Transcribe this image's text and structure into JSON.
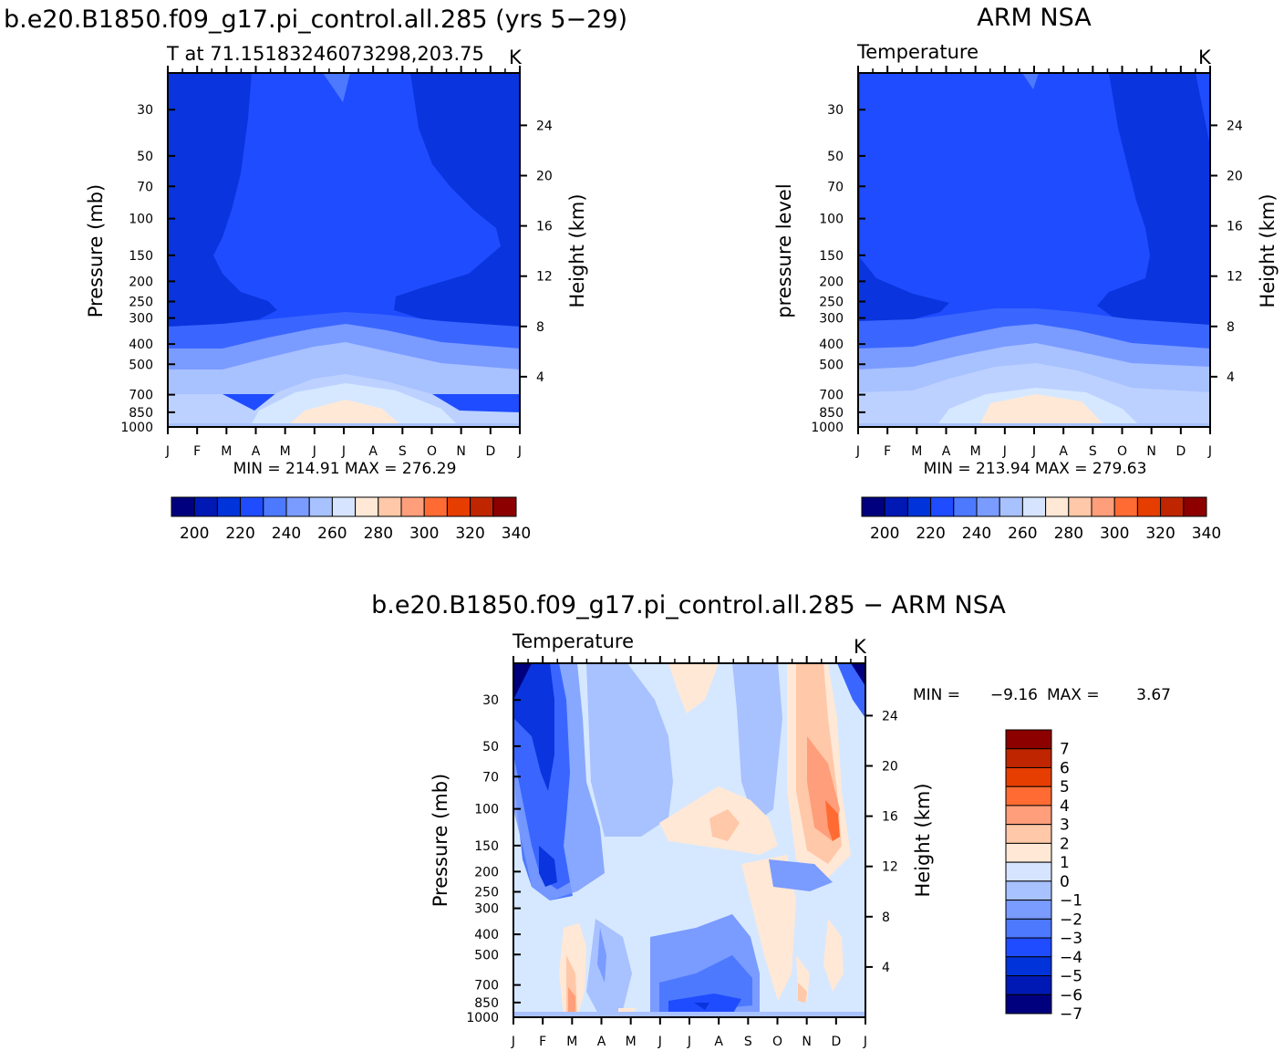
{
  "months": [
    "J",
    "F",
    "M",
    "A",
    "M",
    "J",
    "J",
    "A",
    "S",
    "O",
    "N",
    "D",
    "J"
  ],
  "colors": {
    "abs_scale": [
      "#00007f",
      "#0019b4",
      "#0033d9",
      "#1f4cff",
      "#4d79ff",
      "#7a9bff",
      "#a8c1ff",
      "#d6e4ff",
      "#ffe8d6",
      "#ffc8a8",
      "#ff9e7a",
      "#ff6b33",
      "#e63d00",
      "#bf2600",
      "#8c0000"
    ],
    "diff_scale": [
      "#00007f",
      "#0019b4",
      "#0033d9",
      "#1f4cff",
      "#4d79ff",
      "#7a9bff",
      "#a8c1ff",
      "#d6e4ff",
      "#ffe8d6",
      "#ffc8a8",
      "#ff9e7a",
      "#ff6b33",
      "#e63d00",
      "#bf2600",
      "#8c0000"
    ]
  },
  "top_left": {
    "header": "b.e20.B1850.f09_g17.pi_control.all.285 (yrs 5−29)",
    "subtitle": "T at 71.15183246073298,203.75",
    "units": "K",
    "ylabel": "Pressure (mb)",
    "ylabel_right": "Height (km)",
    "minmax": "MIN = 214.91 MAX = 276.29"
  },
  "top_right": {
    "header": "ARM NSA",
    "subtitle": "Temperature",
    "units": "K",
    "ylabel": "pressure level",
    "ylabel_right": "Height (km)",
    "minmax": "MIN = 213.94 MAX = 279.63"
  },
  "bottom": {
    "header": "b.e20.B1850.f09_g17.pi_control.all.285 − ARM NSA",
    "subtitle": "Temperature",
    "units": "K",
    "ylabel": "Pressure (mb)",
    "ylabel_right": "Height (km)",
    "min_label": "MIN =",
    "min_value": "−9.16",
    "max_label": "MAX =",
    "max_value": "3.67"
  },
  "chart_data": [
    {
      "type": "heatmap",
      "title": "b.e20.B1850.f09_g17.pi_control.all.285 (yrs 5−29)",
      "subtitle": "T at 71.15183246073298,203.75",
      "xlabel": "",
      "ylabel": "Pressure (mb)",
      "ylabel_right": "Height (km)",
      "x": [
        "J",
        "F",
        "M",
        "A",
        "M",
        "J",
        "J",
        "A",
        "S",
        "O",
        "N",
        "D",
        "J"
      ],
      "y_pressure_ticks": [
        30,
        50,
        70,
        100,
        150,
        200,
        250,
        300,
        400,
        500,
        700,
        850,
        1000
      ],
      "y_height_ticks": [
        4,
        8,
        12,
        16,
        20,
        24
      ],
      "colorbar_ticks": [
        200,
        220,
        240,
        260,
        280,
        300,
        320,
        340
      ],
      "band_temps_K": [
        [
          262,
          267,
          270,
          270,
          266,
          262,
          258,
          256,
          256,
          256,
          256
        ],
        [
          268,
          272,
          275,
          276,
          272,
          268,
          264,
          262,
          262,
          262,
          262
        ],
        [
          256,
          258,
          260,
          262,
          260,
          257,
          254,
          252,
          252,
          252,
          252
        ]
      ],
      "min": 214.91,
      "max": 276.29
    },
    {
      "type": "heatmap",
      "title": "ARM NSA",
      "subtitle": "Temperature",
      "xlabel": "",
      "ylabel": "pressure level",
      "ylabel_right": "Height (km)",
      "x": [
        "J",
        "F",
        "M",
        "A",
        "M",
        "J",
        "J",
        "A",
        "S",
        "O",
        "N",
        "D",
        "J"
      ],
      "y_pressure_ticks": [
        30,
        50,
        70,
        100,
        150,
        200,
        250,
        300,
        400,
        500,
        700,
        850,
        1000
      ],
      "y_height_ticks": [
        4,
        8,
        12,
        16,
        20,
        24
      ],
      "colorbar_ticks": [
        200,
        220,
        240,
        260,
        280,
        300,
        320,
        340
      ],
      "min": 213.94,
      "max": 279.63
    },
    {
      "type": "heatmap",
      "title": "b.e20.B1850.f09_g17.pi_control.all.285 − ARM NSA",
      "subtitle": "Temperature",
      "xlabel": "",
      "ylabel": "Pressure (mb)",
      "ylabel_right": "Height (km)",
      "x": [
        "J",
        "F",
        "M",
        "A",
        "M",
        "J",
        "J",
        "A",
        "S",
        "O",
        "N",
        "D",
        "J"
      ],
      "y_pressure_ticks": [
        30,
        50,
        70,
        100,
        150,
        200,
        250,
        300,
        400,
        500,
        700,
        850,
        1000
      ],
      "y_height_ticks": [
        4,
        8,
        12,
        16,
        20,
        24
      ],
      "colorbar_ticks": [
        7,
        6,
        5,
        4,
        3,
        2,
        1,
        0,
        -1,
        -2,
        -3,
        -4,
        -5,
        -6,
        -7
      ],
      "min": -9.16,
      "max": 3.67
    }
  ],
  "abs_colorbar_labels": [
    "200",
    "220",
    "240",
    "260",
    "280",
    "300",
    "320",
    "340"
  ],
  "diff_colorbar_labels": [
    "7",
    "6",
    "5",
    "4",
    "3",
    "2",
    "1",
    "0",
    "−1",
    "−2",
    "−3",
    "−4",
    "−5",
    "−6",
    "−7"
  ],
  "pressure_labels": [
    "30",
    "50",
    "70",
    "100",
    "150",
    "200",
    "250",
    "300",
    "400",
    "500",
    "700",
    "850",
    "1000"
  ],
  "height_labels": [
    "24",
    "20",
    "16",
    "12",
    "8",
    "4"
  ]
}
